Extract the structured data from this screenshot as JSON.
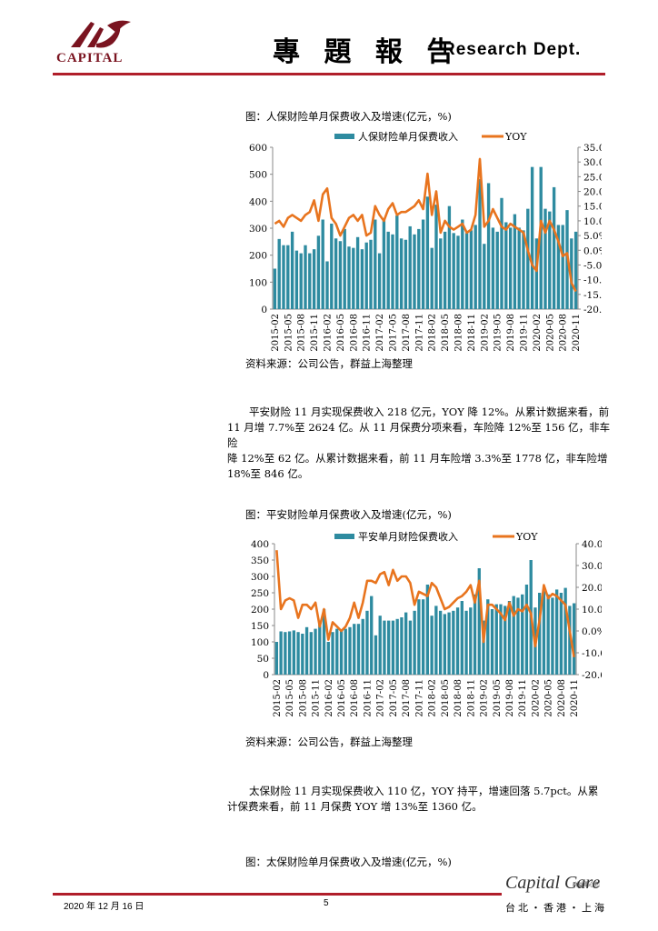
{
  "header": {
    "logo_text": "CAPITAL",
    "title": "專 題 報 告",
    "subtitle": "Research Dept."
  },
  "figure1": {
    "caption": "图：人保财险单月保费收入及增速(亿元，%)",
    "source": "资料来源：公司公告，群益上海整理"
  },
  "paragraph1": [
    "平安财险 11 月实现保费收入 218 亿元，YOY 降 12%。从累计数据来看，前",
    "11 月增 7.7%至 2624 亿。从 11 月保费分项来看，车险降 12%至 156 亿，非车险",
    "降 12%至 62 亿。从累计数据来看，前 11 月车险增 3.3%至 1778 亿，非车险增",
    "18%至 846 亿。"
  ],
  "figure2": {
    "caption": "图：平安财险单月保费收入及增速(亿元，%)",
    "source": "资料来源：公司公告，群益上海整理"
  },
  "paragraph2": [
    "太保财险 11 月实现保费收入 110 亿，YOY 持平，增速回落 5.7pct。从累",
    "计保费来看，前 11 月保费 YOY 增 13%至 1360 亿。"
  ],
  "figure3": {
    "caption": "图：太保财险单月保费收入及增速(亿元，%)"
  },
  "footer": {
    "date": "2020 年 12 月 16 日",
    "page": "5",
    "brand": "Capital Care",
    "brand_small": "群益關心您",
    "cities": "台北・香港・上海"
  },
  "colors": {
    "bar": "#2e8ba0",
    "line": "#e8741e",
    "accent": "#b01e2a"
  },
  "chart_data": [
    {
      "type": "bar",
      "title": "",
      "series": [
        {
          "name": "人保财险单月保费收入",
          "type": "bar",
          "axis": "left",
          "values": [
            150,
            260,
            237,
            237,
            287,
            217,
            207,
            237,
            207,
            222,
            272,
            332,
            177,
            317,
            262,
            252,
            297,
            232,
            227,
            267,
            222,
            247,
            257,
            332,
            207,
            337,
            287,
            277,
            347,
            262,
            257,
            307,
            277,
            297,
            332,
            417,
            227,
            387,
            262,
            287,
            382,
            282,
            272,
            332,
            282,
            292,
            312,
            482,
            242,
            467,
            302,
            287,
            412,
            322,
            302,
            352,
            302,
            292,
            372,
            527,
            262,
            527,
            372,
            362,
            452,
            312,
            312,
            367,
            262,
            287
          ]
        },
        {
          "name": "YOY",
          "type": "line",
          "axis": "right",
          "values": [
            9,
            10,
            8,
            11,
            12,
            11,
            10,
            12,
            13,
            17,
            10,
            19,
            21,
            11,
            9,
            5,
            8,
            11,
            12,
            10,
            12,
            5,
            6,
            15,
            12,
            10,
            14,
            16,
            12,
            13,
            13,
            14,
            15,
            17,
            14,
            26,
            12,
            20,
            6,
            10,
            8,
            7,
            8,
            9,
            6,
            7,
            12,
            31,
            8,
            10,
            14,
            11,
            8,
            7,
            9,
            8,
            7,
            6,
            0,
            -5,
            -7,
            10,
            6,
            10,
            7,
            3,
            -2,
            -1,
            -11,
            -14
          ]
        }
      ],
      "x_ticks": [
        "2015-02",
        "2015-05",
        "2015-08",
        "2015-11",
        "2016-02",
        "2016-05",
        "2016-08",
        "2016-11",
        "2017-02",
        "2017-05",
        "2017-08",
        "2017-11",
        "2018-02",
        "2018-05",
        "2018-08",
        "2018-11",
        "2019-02",
        "2019-05",
        "2019-08",
        "2019-11",
        "2020-02",
        "2020-05",
        "2020-08",
        "2020-11"
      ],
      "y_left_ticks": [
        "0",
        "100",
        "200",
        "300",
        "400",
        "500",
        "600"
      ],
      "y_right_ticks": [
        "35.0%",
        "30.0%",
        "25.0%",
        "20.0%",
        "15.0%",
        "10.0%",
        "5.0%",
        "0.0%",
        "-5.0%",
        "-10.0%",
        "-15.0%",
        "-20.0%"
      ],
      "ylim_left": [
        0,
        600
      ],
      "ylim_right": [
        -20,
        35
      ],
      "legend": "top"
    },
    {
      "type": "bar",
      "title": "",
      "series": [
        {
          "name": "平安单月财险保费收入",
          "type": "bar",
          "axis": "left",
          "values": [
            100,
            132,
            130,
            132,
            135,
            130,
            125,
            145,
            130,
            140,
            160,
            200,
            100,
            130,
            140,
            135,
            140,
            145,
            155,
            155,
            170,
            195,
            240,
            120,
            180,
            165,
            165,
            165,
            170,
            175,
            190,
            165,
            195,
            230,
            230,
            275,
            180,
            210,
            195,
            185,
            190,
            195,
            205,
            225,
            195,
            205,
            245,
            325,
            165,
            230,
            200,
            215,
            215,
            210,
            225,
            240,
            235,
            245,
            275,
            350,
            205,
            250,
            255,
            245,
            235,
            260,
            250,
            265,
            210,
            218
          ]
        },
        {
          "name": "YOY",
          "type": "line",
          "axis": "right",
          "values": [
            37,
            10,
            14,
            15,
            14,
            6,
            12,
            12,
            10,
            13,
            2,
            10,
            -4,
            4,
            2,
            0,
            2,
            6,
            13,
            6,
            13,
            23,
            23,
            22,
            26,
            27,
            21,
            28,
            23,
            25,
            25,
            22,
            12,
            18,
            17,
            16,
            22,
            20,
            15,
            10,
            11,
            13,
            15,
            16,
            18,
            21,
            13,
            23,
            -5,
            12,
            12,
            10,
            8,
            5,
            13,
            7,
            10,
            9,
            12,
            8,
            -7,
            5,
            21,
            15,
            17,
            16,
            14,
            12,
            0,
            -12
          ]
        }
      ],
      "x_ticks": [
        "2015-02",
        "2015-05",
        "2015-08",
        "2015-11",
        "2016-02",
        "2016-05",
        "2016-08",
        "2016-11",
        "2017-02",
        "2017-05",
        "2017-08",
        "2017-11",
        "2018-02",
        "2018-05",
        "2018-08",
        "2018-11",
        "2019-02",
        "2019-05",
        "2019-08",
        "2019-11",
        "2020-02",
        "2020-05",
        "2020-08",
        "2020-11"
      ],
      "y_left_ticks": [
        "0",
        "50",
        "100",
        "150",
        "200",
        "250",
        "300",
        "350",
        "400"
      ],
      "y_right_ticks": [
        "40.0%",
        "30.0%",
        "20.0%",
        "10.0%",
        "0.0%",
        "-10.0%",
        "-20.0%"
      ],
      "ylim_left": [
        0,
        400
      ],
      "ylim_right": [
        -20,
        40
      ],
      "legend": "top"
    }
  ]
}
